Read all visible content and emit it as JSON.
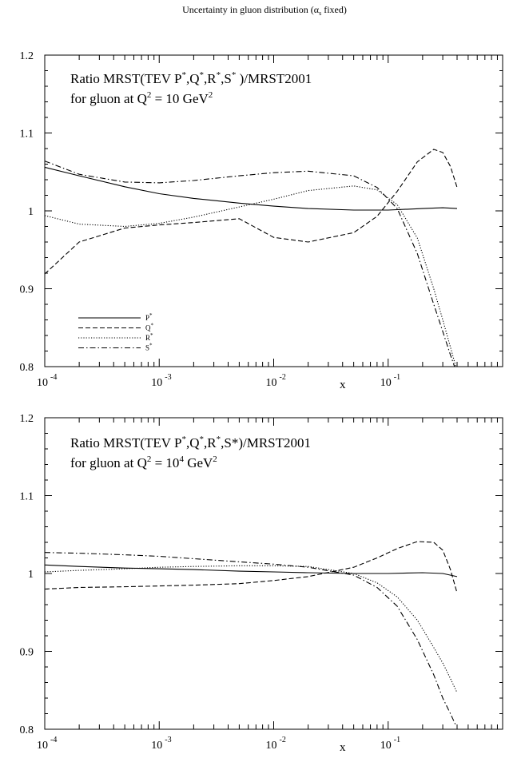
{
  "figure": {
    "title_main": "Uncertainty in gluon distribution (",
    "title_alpha": "α",
    "title_sub": "s",
    "title_tail": " fixed)"
  },
  "chart_data": [
    {
      "type": "line",
      "panel_name": "top-panel",
      "title_line1_segments": [
        "Ratio MRST(TEV P",
        "*",
        ",Q",
        "*",
        ",R",
        "*",
        ",S",
        "*",
        " )/MRST2001"
      ],
      "title_line2_segments": [
        "for gluon at Q",
        "2",
        " = 10 GeV",
        "2"
      ],
      "xlabel": "x",
      "ylabel": "",
      "x_scale": "log",
      "xlim": [
        0.0001,
        1
      ],
      "ylim": [
        0.8,
        1.2
      ],
      "x_tick_labels": [
        {
          "base": "10",
          "exp": "-4",
          "value": 0.0001
        },
        {
          "base": "10",
          "exp": "-3",
          "value": 0.001
        },
        {
          "base": "10",
          "exp": "-2",
          "value": 0.01
        },
        {
          "base": "10",
          "exp": "-1",
          "value": 0.1
        }
      ],
      "y_ticks": [
        0.8,
        0.9,
        1.0,
        1.1,
        1.2
      ],
      "y_tick_labels": [
        "0.8",
        "0.9",
        "1",
        "1.1",
        "1.2"
      ],
      "legend_position": "bottom-left",
      "series": [
        {
          "name": "P",
          "name_sup": "*",
          "style": "solid",
          "x": [
            0.0001,
            0.0002,
            0.0005,
            0.001,
            0.002,
            0.005,
            0.01,
            0.02,
            0.05,
            0.1,
            0.2,
            0.3,
            0.4
          ],
          "y": [
            1.056,
            1.045,
            1.031,
            1.022,
            1.016,
            1.01,
            1.006,
            1.003,
            1.001,
            1.001,
            1.003,
            1.004,
            1.003
          ]
        },
        {
          "name": "Q",
          "name_sup": "*",
          "style": "dashed",
          "x": [
            0.0001,
            0.0002,
            0.0005,
            0.001,
            0.002,
            0.005,
            0.01,
            0.02,
            0.05,
            0.08,
            0.12,
            0.18,
            0.25,
            0.3,
            0.35,
            0.4
          ],
          "y": [
            0.919,
            0.96,
            0.978,
            0.982,
            0.985,
            0.99,
            0.966,
            0.96,
            0.972,
            0.993,
            1.025,
            1.063,
            1.079,
            1.075,
            1.057,
            1.03
          ]
        },
        {
          "name": "R",
          "name_sup": "*",
          "style": "dotted",
          "x": [
            0.0001,
            0.0002,
            0.0005,
            0.001,
            0.002,
            0.005,
            0.01,
            0.02,
            0.05,
            0.08,
            0.12,
            0.18,
            0.25,
            0.3,
            0.35,
            0.39
          ],
          "y": [
            0.994,
            0.983,
            0.98,
            0.984,
            0.992,
            1.005,
            1.015,
            1.026,
            1.032,
            1.027,
            1.008,
            0.965,
            0.9,
            0.86,
            0.825,
            0.8
          ]
        },
        {
          "name": "S",
          "name_sup": "*",
          "style": "dashdot",
          "x": [
            0.0001,
            0.0002,
            0.0005,
            0.001,
            0.002,
            0.005,
            0.01,
            0.02,
            0.05,
            0.08,
            0.12,
            0.18,
            0.25,
            0.3,
            0.35,
            0.38
          ],
          "y": [
            1.064,
            1.047,
            1.037,
            1.036,
            1.039,
            1.045,
            1.049,
            1.051,
            1.045,
            1.03,
            1.003,
            0.945,
            0.88,
            0.845,
            0.815,
            0.8
          ]
        }
      ]
    },
    {
      "type": "line",
      "panel_name": "bottom-panel",
      "title_line1_segments": [
        "Ratio MRST(TEV P",
        "*",
        ",Q",
        "*",
        ",R",
        "*",
        ",S*)/MRST2001"
      ],
      "title_line2_segments": [
        "for gluon at Q",
        "2",
        " = 10",
        "4",
        " GeV",
        "2"
      ],
      "xlabel": "x",
      "ylabel": "",
      "x_scale": "log",
      "xlim": [
        0.0001,
        1
      ],
      "ylim": [
        0.8,
        1.2
      ],
      "x_tick_labels": [
        {
          "base": "10",
          "exp": "-4",
          "value": 0.0001
        },
        {
          "base": "10",
          "exp": "-3",
          "value": 0.001
        },
        {
          "base": "10",
          "exp": "-2",
          "value": 0.01
        },
        {
          "base": "10",
          "exp": "-1",
          "value": 0.1
        }
      ],
      "y_ticks": [
        0.8,
        0.9,
        1.0,
        1.1,
        1.2
      ],
      "y_tick_labels": [
        "0.8",
        "0.9",
        "1",
        "1.1",
        "1.2"
      ],
      "series": [
        {
          "name": "P",
          "style": "solid",
          "x": [
            0.0001,
            0.0002,
            0.0005,
            0.001,
            0.002,
            0.005,
            0.01,
            0.02,
            0.05,
            0.1,
            0.2,
            0.3,
            0.4
          ],
          "y": [
            1.011,
            1.009,
            1.007,
            1.006,
            1.005,
            1.003,
            1.002,
            1.001,
            1.0,
            1.0,
            1.001,
            1.0,
            0.996
          ]
        },
        {
          "name": "Q",
          "style": "dashed",
          "x": [
            0.0001,
            0.0002,
            0.0005,
            0.001,
            0.002,
            0.005,
            0.01,
            0.02,
            0.05,
            0.08,
            0.12,
            0.18,
            0.25,
            0.3,
            0.35,
            0.4
          ],
          "y": [
            0.98,
            0.982,
            0.983,
            0.984,
            0.985,
            0.987,
            0.991,
            0.996,
            1.008,
            1.02,
            1.032,
            1.041,
            1.04,
            1.03,
            1.005,
            0.975
          ]
        },
        {
          "name": "R",
          "style": "dotted",
          "x": [
            0.0001,
            0.0002,
            0.0005,
            0.001,
            0.002,
            0.005,
            0.01,
            0.02,
            0.05,
            0.08,
            0.12,
            0.18,
            0.25,
            0.3,
            0.35,
            0.4
          ],
          "y": [
            1.002,
            1.004,
            1.006,
            1.008,
            1.009,
            1.01,
            1.01,
            1.009,
            1.0,
            0.988,
            0.97,
            0.94,
            0.905,
            0.885,
            0.865,
            0.847
          ]
        },
        {
          "name": "S",
          "style": "dashdot",
          "x": [
            0.0001,
            0.0002,
            0.0005,
            0.001,
            0.002,
            0.005,
            0.01,
            0.02,
            0.05,
            0.08,
            0.12,
            0.18,
            0.25,
            0.3,
            0.35,
            0.39
          ],
          "y": [
            1.027,
            1.026,
            1.024,
            1.022,
            1.019,
            1.015,
            1.012,
            1.008,
            0.998,
            0.982,
            0.958,
            0.915,
            0.87,
            0.84,
            0.82,
            0.805
          ]
        }
      ]
    }
  ]
}
